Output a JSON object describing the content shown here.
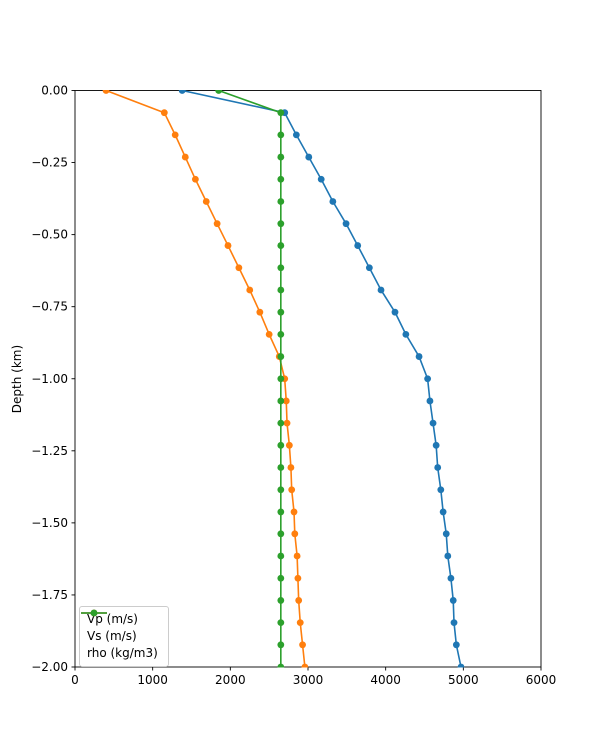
{
  "figure": {
    "background_color": "#ffffff",
    "title": ""
  },
  "chart_data": {
    "type": "line",
    "orientation": "values-vs-depth (depth on y axis, negative down)",
    "title": "",
    "xlabel": "",
    "ylabel": "Depth (km)",
    "xlim": [
      0,
      6000
    ],
    "ylim": [
      -2.0,
      0.0
    ],
    "grid": false,
    "legend_position": "lower left",
    "marker": "circle",
    "x_ticks": [
      0,
      1000,
      2000,
      3000,
      4000,
      5000,
      6000
    ],
    "y_ticks": [
      0.0,
      -0.25,
      -0.5,
      -0.75,
      -1.0,
      -1.25,
      -1.5,
      -1.75,
      -2.0
    ],
    "y_tick_labels": [
      "0.00",
      "−0.25",
      "−0.50",
      "−0.75",
      "−1.00",
      "−1.25",
      "−1.50",
      "−1.75",
      "−2.00"
    ],
    "depth_km": [
      0.0,
      -0.077,
      -0.154,
      -0.231,
      -0.308,
      -0.385,
      -0.462,
      -0.538,
      -0.615,
      -0.692,
      -0.769,
      -0.846,
      -0.923,
      -1.0,
      -1.077,
      -1.154,
      -1.231,
      -1.308,
      -1.385,
      -1.462,
      -1.538,
      -1.615,
      -1.692,
      -1.769,
      -1.846,
      -1.923,
      -2.0
    ],
    "series": [
      {
        "key": "vp",
        "name": "Vp (m/s)",
        "color": "#1f77b4",
        "values": [
          1380,
          2700,
          2850,
          3010,
          3170,
          3320,
          3490,
          3640,
          3790,
          3940,
          4120,
          4260,
          4430,
          4540,
          4570,
          4610,
          4650,
          4670,
          4710,
          4740,
          4780,
          4800,
          4840,
          4870,
          4880,
          4910,
          4970
        ]
      },
      {
        "key": "vs",
        "name": "Vs (m/s)",
        "color": "#ff7f0e",
        "values": [
          400,
          1150,
          1290,
          1420,
          1550,
          1690,
          1830,
          1970,
          2110,
          2250,
          2380,
          2500,
          2630,
          2700,
          2720,
          2730,
          2760,
          2780,
          2790,
          2820,
          2830,
          2860,
          2870,
          2880,
          2900,
          2930,
          2960
        ]
      },
      {
        "key": "rho",
        "name": "rho (kg/m3)",
        "color": "#2ca02c",
        "values": [
          1850,
          2650,
          2650,
          2650,
          2650,
          2650,
          2650,
          2650,
          2650,
          2650,
          2650,
          2650,
          2650,
          2650,
          2650,
          2650,
          2650,
          2650,
          2650,
          2650,
          2650,
          2650,
          2650,
          2650,
          2650,
          2650,
          2650
        ]
      }
    ]
  }
}
